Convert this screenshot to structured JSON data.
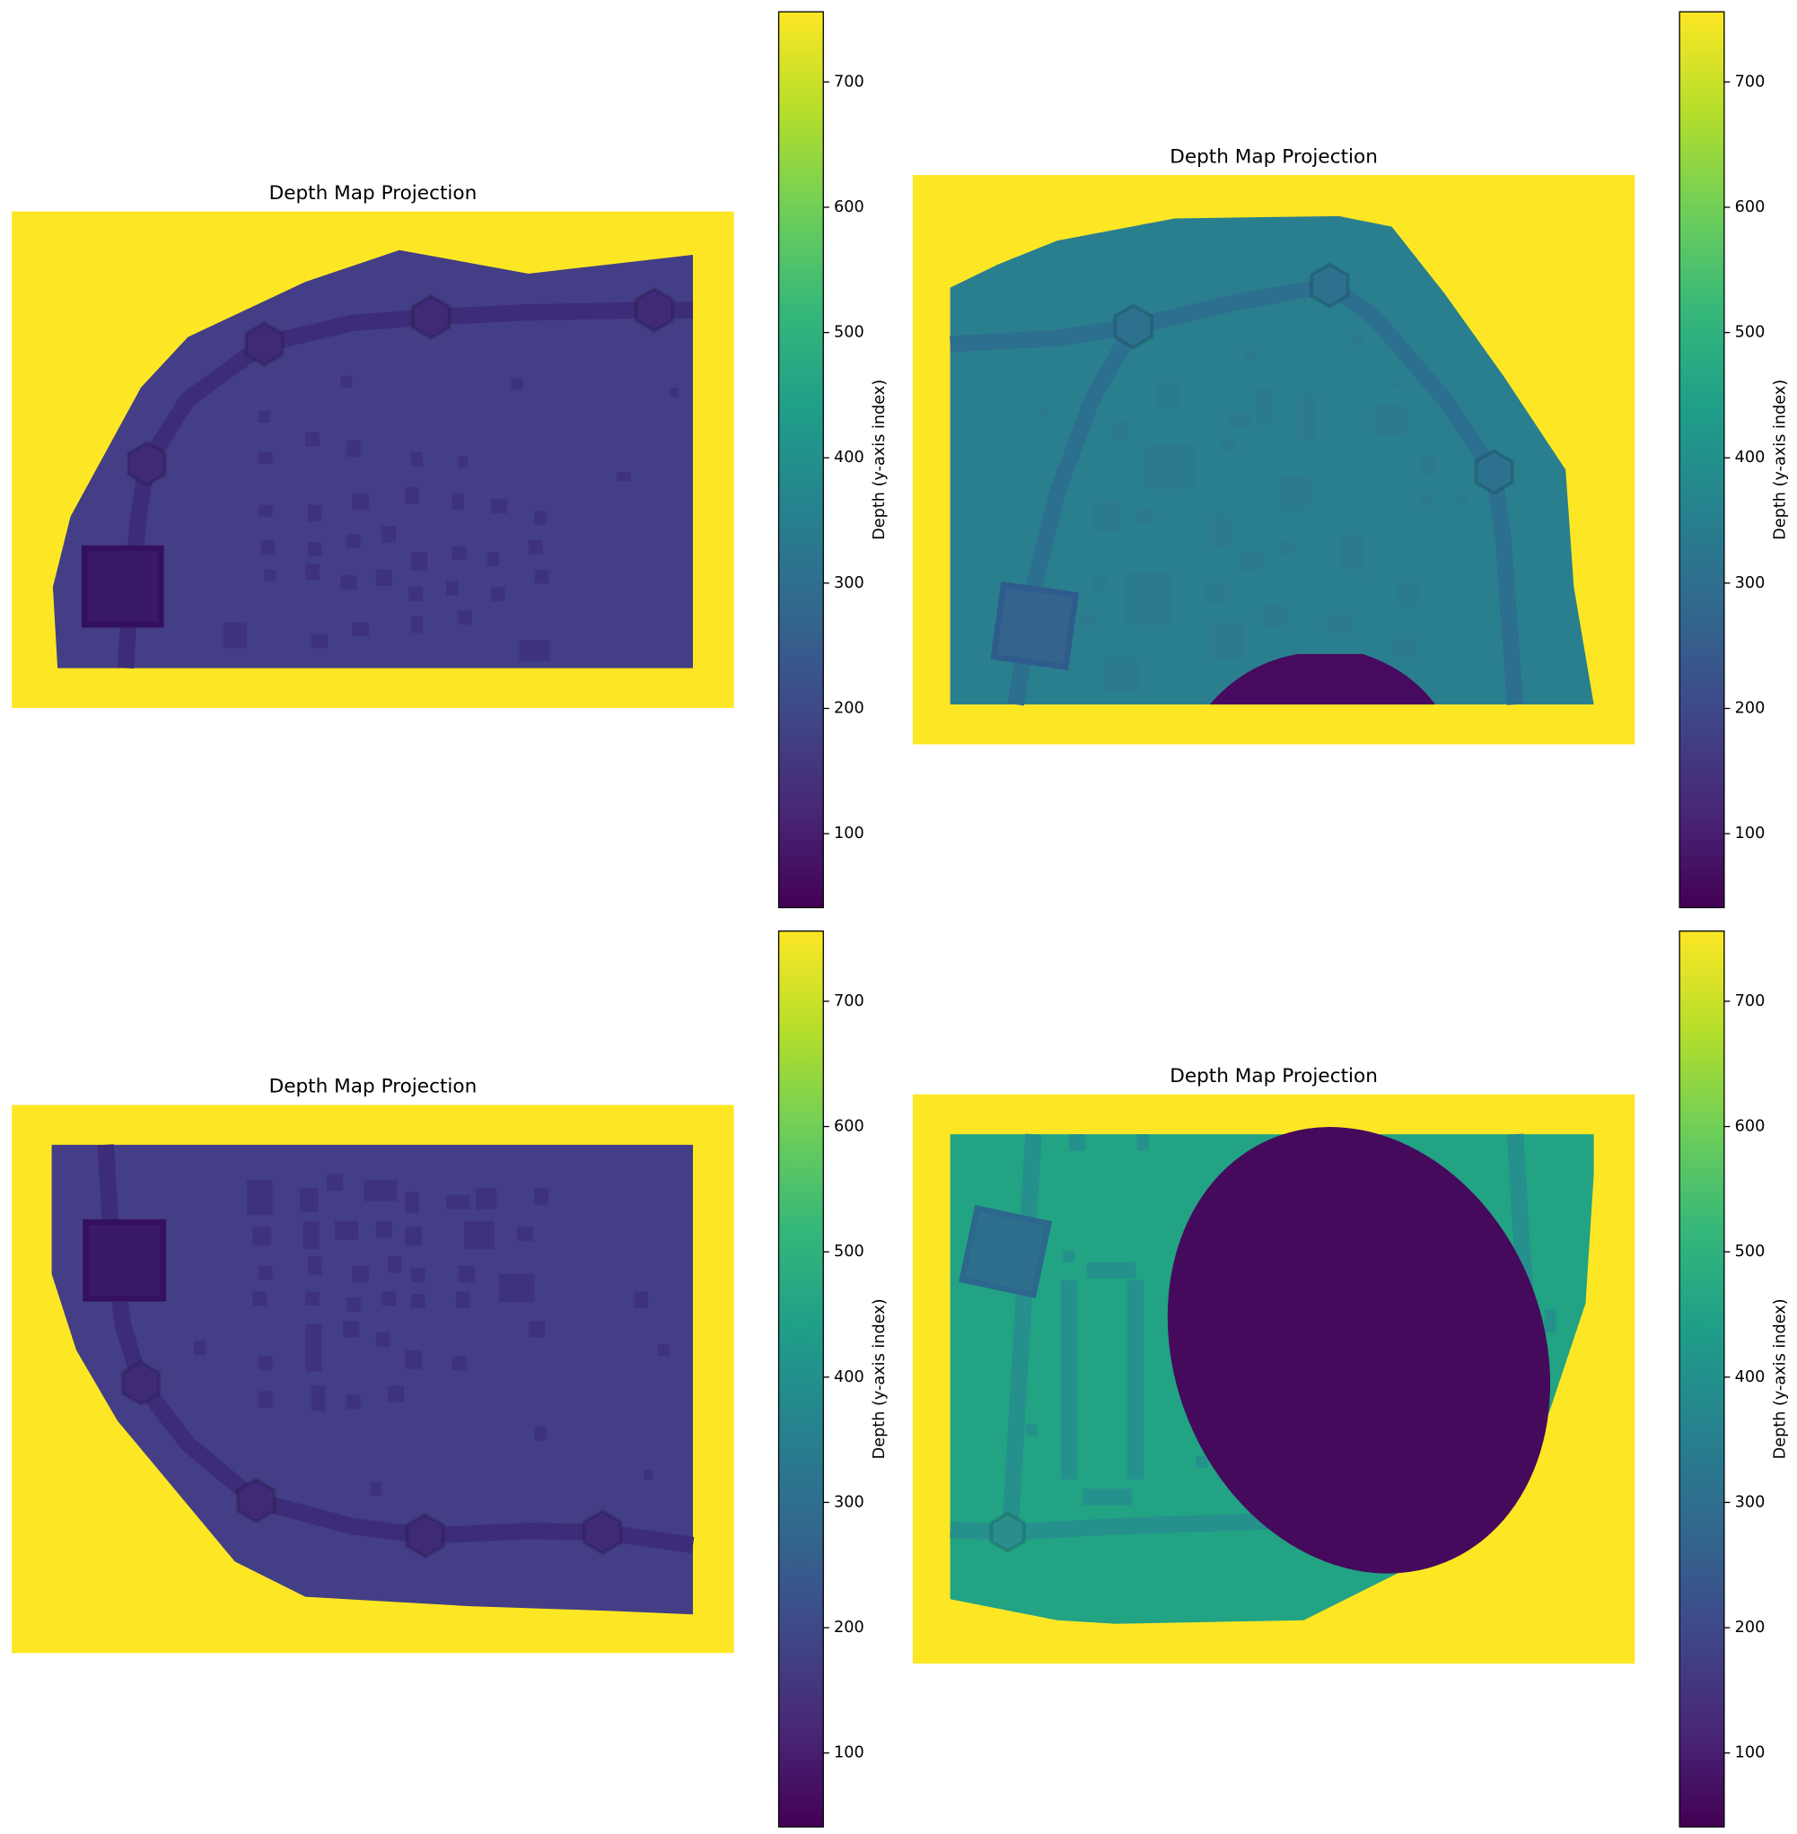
{
  "chart_data": [
    {
      "type": "heatmap",
      "title": "Depth Map Projection",
      "colormap": "viridis",
      "colorbar_label": "Depth (y-axis index)",
      "clim": [
        41,
        756
      ],
      "cticks": [
        100,
        200,
        300,
        400,
        500,
        600,
        700
      ]
    },
    {
      "type": "heatmap",
      "title": "Depth Map Projection",
      "colormap": "viridis",
      "colorbar_label": "Depth (y-axis index)",
      "clim": [
        41,
        756
      ],
      "cticks": [
        100,
        200,
        300,
        400,
        500,
        600,
        700
      ]
    },
    {
      "type": "heatmap",
      "title": "Depth Map Projection",
      "colormap": "viridis",
      "colorbar_label": "Depth (y-axis index)",
      "clim": [
        41,
        756
      ],
      "cticks": [
        100,
        200,
        300,
        400,
        500,
        600,
        700
      ]
    },
    {
      "type": "heatmap",
      "title": "Depth Map Projection",
      "colormap": "viridis",
      "colorbar_label": "Depth (y-axis index)",
      "clim": [
        41,
        756
      ],
      "cticks": [
        100,
        200,
        300,
        400,
        500,
        600,
        700
      ]
    }
  ]
}
